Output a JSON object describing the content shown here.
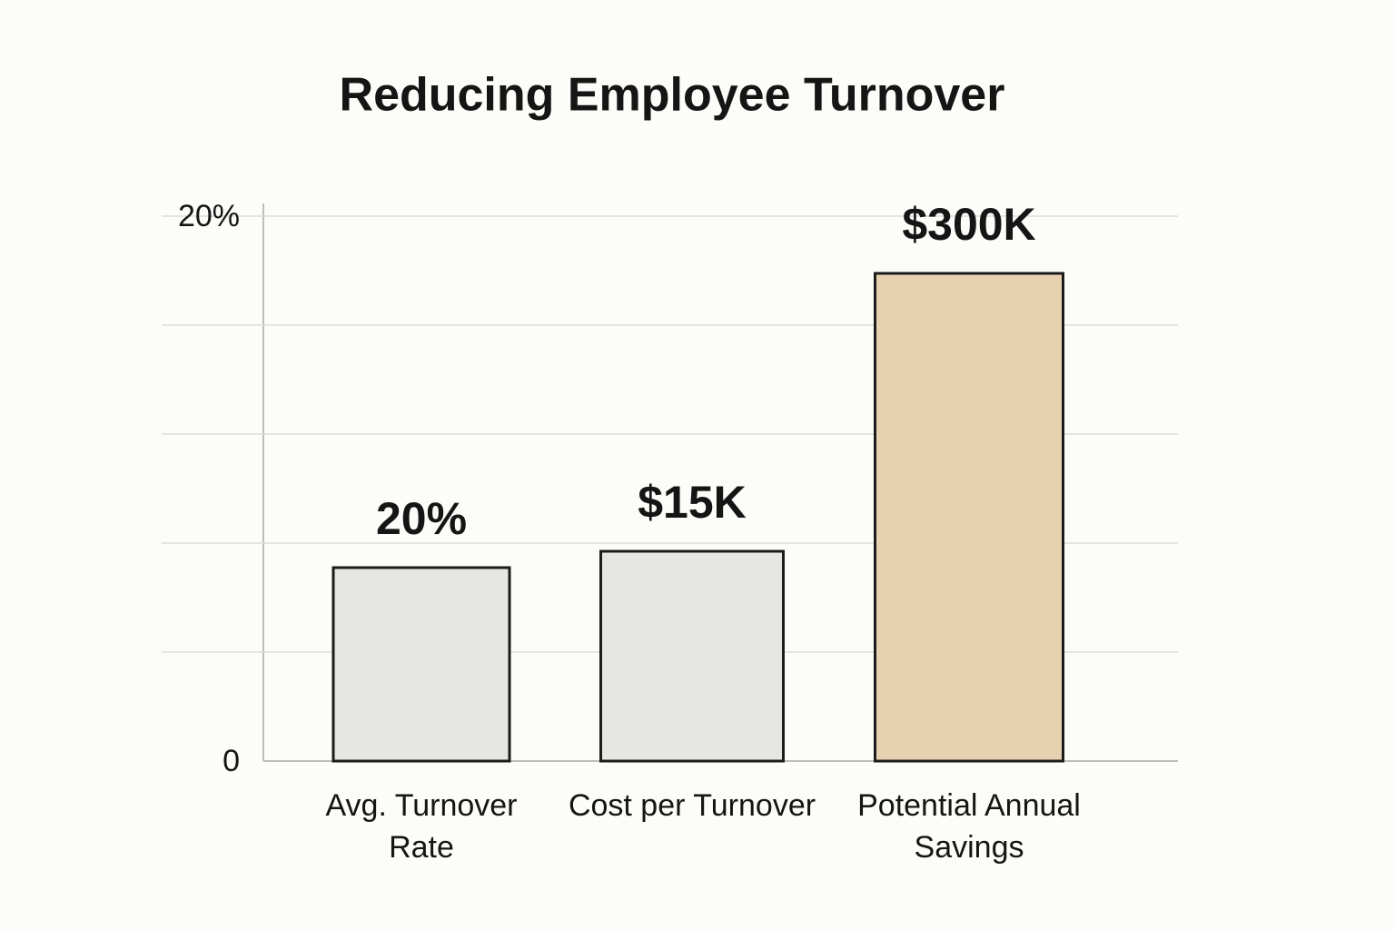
{
  "chart_data": {
    "type": "bar",
    "title": "Reducing Employee Turnover",
    "categories": [
      "Avg. Turnover Rate",
      "Cost per Turnover",
      "Potential Annual Savings"
    ],
    "values": [
      7.1,
      7.7,
      17.9
    ],
    "bar_annotations": [
      "20%",
      "$15K",
      "$300K"
    ],
    "colors": [
      "#e6e6e3",
      "#e6e6e3",
      "#e8d1b1"
    ],
    "ylim": [
      0,
      20
    ],
    "yticks": [
      0,
      {
        "value": 20,
        "label": "20%"
      }
    ],
    "ygrid": [
      0,
      4,
      8,
      12,
      16,
      20
    ],
    "grid": true
  }
}
